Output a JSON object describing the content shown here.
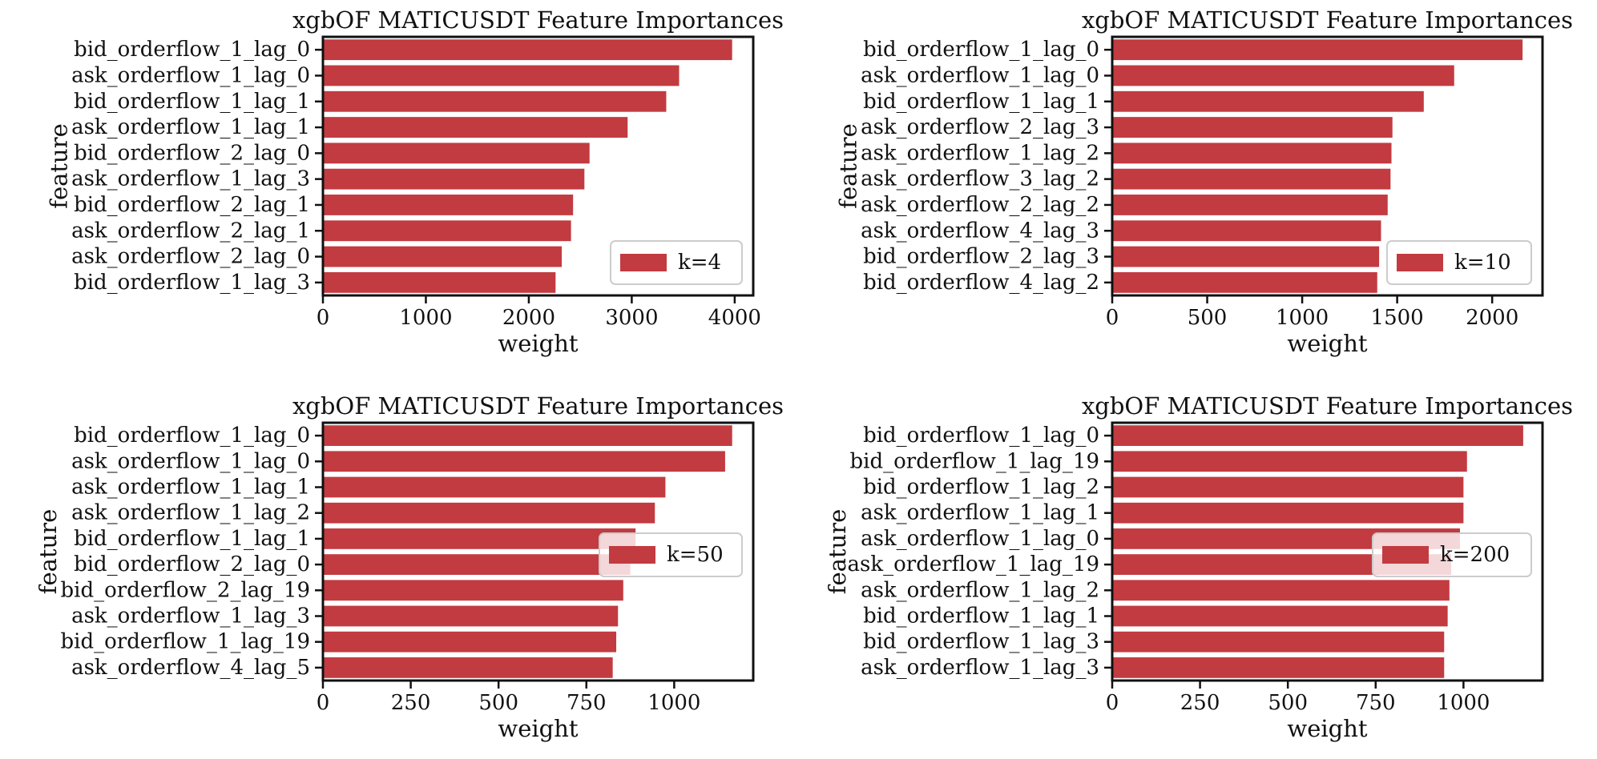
{
  "colors": {
    "bar": "#c23b40",
    "axis": "#111111",
    "background": "#ffffff"
  },
  "chart_data": [
    {
      "type": "bar",
      "orientation": "horizontal",
      "title": "xgbOF MATICUSDT Feature Importances",
      "xlabel": "weight",
      "ylabel": "feature",
      "categories": [
        "bid_orderflow_1_lag_0",
        "ask_orderflow_1_lag_0",
        "bid_orderflow_1_lag_1",
        "ask_orderflow_1_lag_1",
        "bid_orderflow_2_lag_0",
        "ask_orderflow_1_lag_3",
        "bid_orderflow_2_lag_1",
        "ask_orderflow_2_lag_1",
        "ask_orderflow_2_lag_0",
        "bid_orderflow_1_lag_3"
      ],
      "values": [
        3975,
        3460,
        3335,
        2960,
        2590,
        2540,
        2430,
        2410,
        2320,
        2260
      ],
      "xlim": [
        0,
        4180
      ],
      "xticks": [
        0,
        1000,
        2000,
        3000,
        4000
      ],
      "xtick_labels": [
        "0",
        "1000",
        "2000",
        "3000",
        "4000"
      ],
      "legend": {
        "label": "k=4",
        "placement": "lower-right"
      },
      "grid": false
    },
    {
      "type": "bar",
      "orientation": "horizontal",
      "title": "xgbOF MATICUSDT Feature Importances",
      "xlabel": "weight",
      "ylabel": "feature",
      "categories": [
        "bid_orderflow_1_lag_0",
        "ask_orderflow_1_lag_0",
        "bid_orderflow_1_lag_1",
        "ask_orderflow_2_lag_3",
        "ask_orderflow_1_lag_2",
        "ask_orderflow_3_lag_2",
        "ask_orderflow_2_lag_2",
        "ask_orderflow_4_lag_3",
        "bid_orderflow_2_lag_3",
        "bid_orderflow_4_lag_2"
      ],
      "values": [
        2160,
        1800,
        1640,
        1475,
        1470,
        1465,
        1450,
        1415,
        1405,
        1395
      ],
      "xlim": [
        0,
        2265
      ],
      "xticks": [
        0,
        500,
        1000,
        1500,
        2000
      ],
      "xtick_labels": [
        "0",
        "500",
        "1000",
        "1500",
        "2000"
      ],
      "legend": {
        "label": "k=10",
        "placement": "lower-right"
      },
      "grid": false
    },
    {
      "type": "bar",
      "orientation": "horizontal",
      "title": "xgbOF MATICUSDT Feature Importances",
      "xlabel": "weight",
      "ylabel": "feature",
      "categories": [
        "bid_orderflow_1_lag_0",
        "ask_orderflow_1_lag_0",
        "ask_orderflow_1_lag_1",
        "ask_orderflow_1_lag_2",
        "bid_orderflow_1_lag_1",
        "bid_orderflow_2_lag_0",
        "bid_orderflow_2_lag_19",
        "ask_orderflow_1_lag_3",
        "bid_orderflow_1_lag_19",
        "ask_orderflow_4_lag_5"
      ],
      "values": [
        1165,
        1145,
        975,
        945,
        890,
        875,
        855,
        840,
        835,
        825
      ],
      "xlim": [
        0,
        1225
      ],
      "xticks": [
        0,
        250,
        500,
        750,
        1000
      ],
      "xtick_labels": [
        "0",
        "250",
        "500",
        "750",
        "1000"
      ],
      "legend": {
        "label": "k=50",
        "placement": "center-right"
      },
      "grid": false
    },
    {
      "type": "bar",
      "orientation": "horizontal",
      "title": "xgbOF MATICUSDT Feature Importances",
      "xlabel": "weight",
      "ylabel": "feature",
      "categories": [
        "bid_orderflow_1_lag_0",
        "bid_orderflow_1_lag_19",
        "bid_orderflow_1_lag_2",
        "ask_orderflow_1_lag_1",
        "ask_orderflow_1_lag_0",
        "ask_orderflow_1_lag_19",
        "ask_orderflow_1_lag_2",
        "bid_orderflow_1_lag_1",
        "bid_orderflow_1_lag_3",
        "ask_orderflow_1_lag_3"
      ],
      "values": [
        1170,
        1010,
        1000,
        1000,
        990,
        965,
        960,
        955,
        945,
        945
      ],
      "xlim": [
        0,
        1225
      ],
      "xticks": [
        0,
        250,
        500,
        750,
        1000
      ],
      "xtick_labels": [
        "0",
        "250",
        "500",
        "750",
        "1000"
      ],
      "legend": {
        "label": "k=200",
        "placement": "center-right"
      },
      "grid": false
    }
  ]
}
